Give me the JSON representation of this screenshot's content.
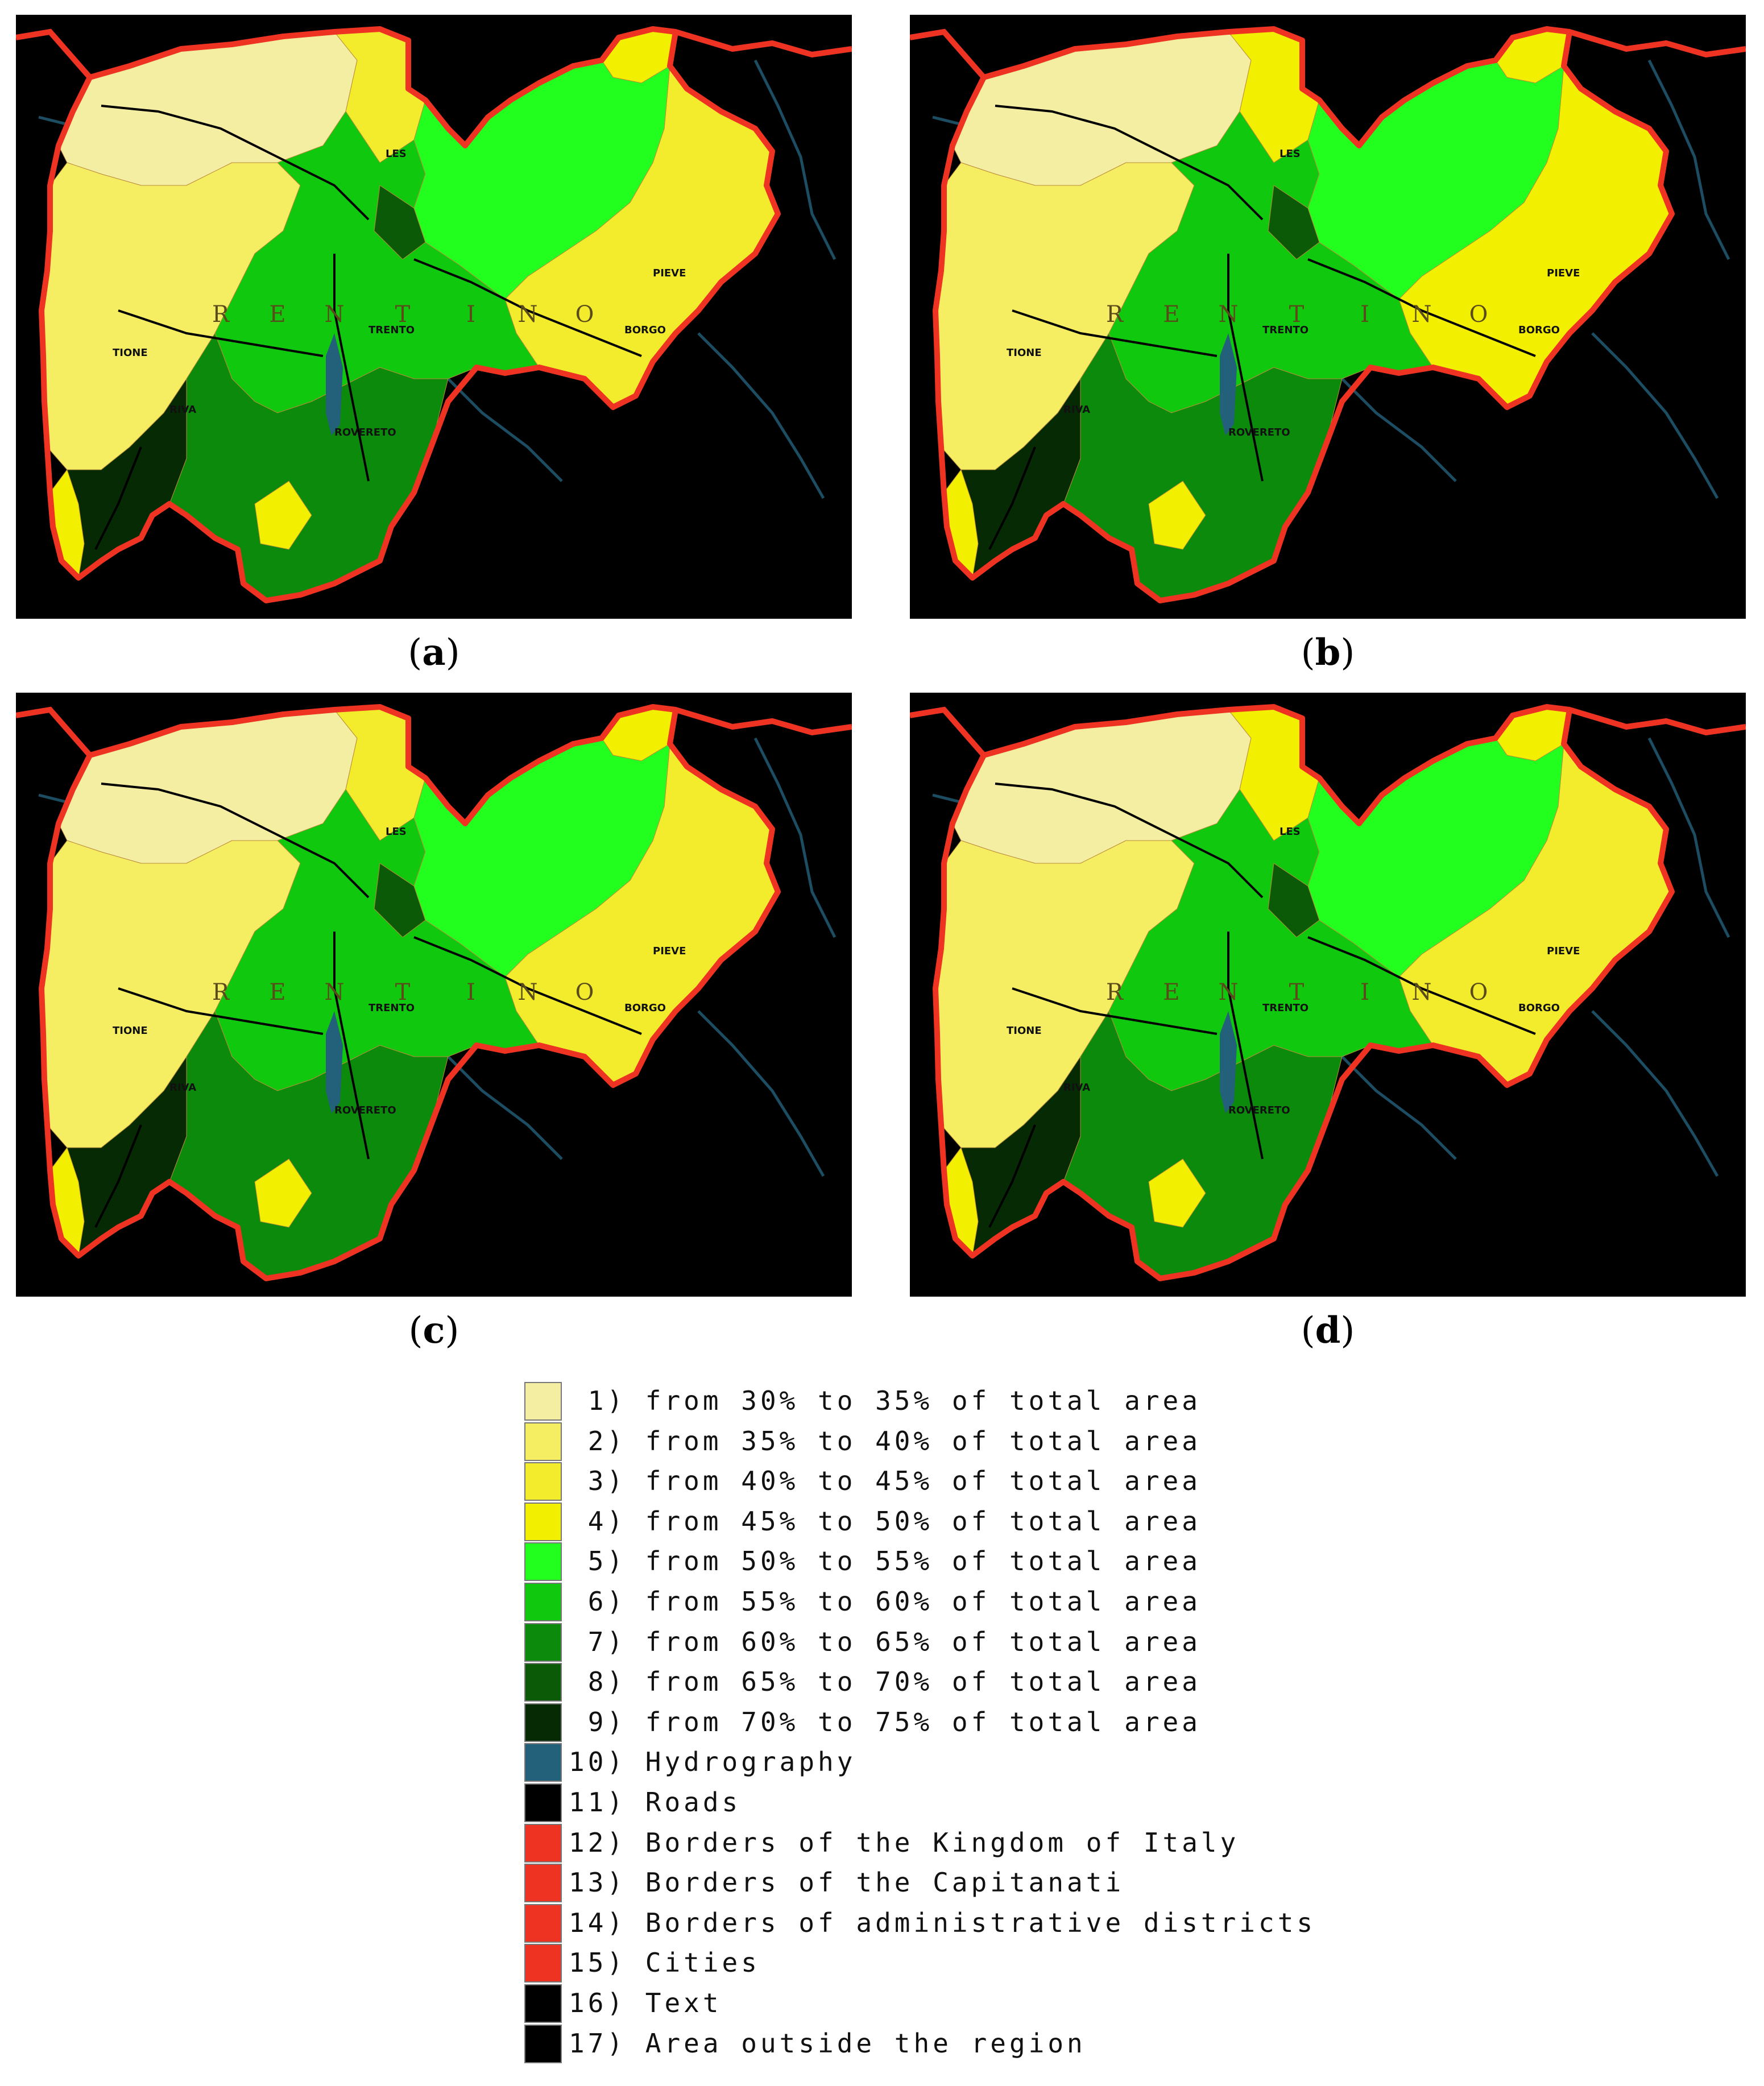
{
  "panels": [
    {
      "id": "a",
      "label": "a"
    },
    {
      "id": "b",
      "label": "b"
    },
    {
      "id": "c",
      "label": "c"
    },
    {
      "id": "d",
      "label": "d"
    }
  ],
  "map_text": {
    "region_letters": [
      "R",
      "E",
      "N",
      "T",
      "I",
      "N",
      "O"
    ],
    "towns": [
      "TIONE",
      "RIVA",
      "ROVERETO",
      "TRENTO",
      "LES",
      "BORGO",
      "PIEVE"
    ]
  },
  "colors": {
    "c1": "#f4eea2",
    "c2": "#f5ee63",
    "c3": "#f2ec2c",
    "c4": "#f3ef00",
    "c5": "#22ff1e",
    "c6": "#10c80e",
    "c7": "#0c8a0b",
    "c8": "#0a5a08",
    "c9": "#062a04",
    "hydro": "#23607a",
    "roads": "#000000",
    "border": "#ee3323",
    "outside": "#000000"
  },
  "legend": [
    {
      "num": " 1)",
      "text": "from 30% to 35% of total area",
      "color": "#f4eea2"
    },
    {
      "num": " 2)",
      "text": "from 35% to 40% of total area",
      "color": "#f5ee63"
    },
    {
      "num": " 3)",
      "text": "from 40% to 45% of total area",
      "color": "#f2ec2c"
    },
    {
      "num": " 4)",
      "text": "from 45% to 50% of total area",
      "color": "#f3ef00"
    },
    {
      "num": " 5)",
      "text": "from 50% to 55% of total area",
      "color": "#22ff1e"
    },
    {
      "num": " 6)",
      "text": "from 55% to 60% of total area",
      "color": "#10c80e"
    },
    {
      "num": " 7)",
      "text": "from 60% to 65% of total area",
      "color": "#0c8a0b"
    },
    {
      "num": " 8)",
      "text": "from 65% to 70% of total area",
      "color": "#0a5a08"
    },
    {
      "num": " 9)",
      "text": "from 70% to 75% of total area",
      "color": "#062a04"
    },
    {
      "num": "10)",
      "text": "Hydrography",
      "color": "#23607a"
    },
    {
      "num": "11)",
      "text": "Roads",
      "color": "#000000"
    },
    {
      "num": "12)",
      "text": "Borders of the Kingdom of Italy",
      "color": "#ee3323"
    },
    {
      "num": "13)",
      "text": "Borders of the Capitanati",
      "color": "#ee3323"
    },
    {
      "num": "14)",
      "text": "Borders of administrative districts",
      "color": "#ee3323"
    },
    {
      "num": "15)",
      "text": "Cities",
      "color": "#ee3323"
    },
    {
      "num": "16)",
      "text": "Text",
      "color": "#000000"
    },
    {
      "num": "17)",
      "text": "Area outside the region",
      "color": "#000000"
    }
  ]
}
